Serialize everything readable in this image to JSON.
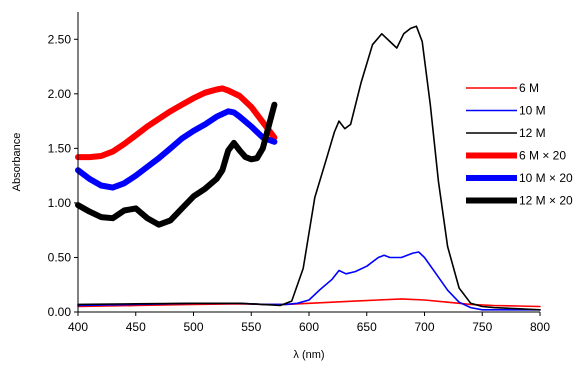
{
  "chart_data": {
    "type": "line",
    "title": "",
    "xlabel": "λ (nm)",
    "ylabel": "Absorbance",
    "xlim": [
      400,
      800
    ],
    "ylim": [
      0,
      2.75
    ],
    "xticks": [
      "400",
      "450",
      "500",
      "550",
      "600",
      "650",
      "700",
      "750",
      "800"
    ],
    "yticks": [
      "0.00",
      "0.50",
      "1.00",
      "1.50",
      "2.00",
      "2.50"
    ],
    "grid": false,
    "legend_position": "right",
    "series": [
      {
        "name": "6 M",
        "color": "#ff0000",
        "weight": "thin",
        "x": [
          400,
          450,
          500,
          540,
          560,
          580,
          600,
          620,
          640,
          660,
          680,
          700,
          720,
          740,
          760,
          780,
          800
        ],
        "y": [
          0.05,
          0.06,
          0.07,
          0.075,
          0.07,
          0.07,
          0.08,
          0.09,
          0.1,
          0.11,
          0.12,
          0.11,
          0.09,
          0.07,
          0.06,
          0.055,
          0.05
        ]
      },
      {
        "name": "10 M",
        "color": "#0000ff",
        "weight": "thin",
        "x": [
          400,
          450,
          500,
          540,
          560,
          580,
          590,
          600,
          610,
          620,
          626,
          632,
          640,
          650,
          660,
          665,
          670,
          680,
          690,
          695,
          700,
          710,
          720,
          730,
          740,
          750,
          760,
          780,
          800
        ],
        "y": [
          0.06,
          0.07,
          0.08,
          0.08,
          0.07,
          0.07,
          0.08,
          0.11,
          0.21,
          0.3,
          0.38,
          0.35,
          0.37,
          0.42,
          0.5,
          0.52,
          0.5,
          0.5,
          0.54,
          0.55,
          0.5,
          0.35,
          0.2,
          0.09,
          0.04,
          0.02,
          0.02,
          0.02,
          0.02
        ]
      },
      {
        "name": "12 M",
        "color": "#000000",
        "weight": "thin",
        "x": [
          400,
          450,
          500,
          540,
          560,
          575,
          585,
          595,
          605,
          615,
          622,
          626,
          631,
          636,
          645,
          655,
          663,
          670,
          676,
          682,
          688,
          693,
          698,
          705,
          712,
          720,
          730,
          740,
          750,
          760,
          780,
          800
        ],
        "y": [
          0.07,
          0.075,
          0.08,
          0.08,
          0.07,
          0.06,
          0.1,
          0.4,
          1.05,
          1.4,
          1.65,
          1.75,
          1.68,
          1.72,
          2.1,
          2.45,
          2.55,
          2.48,
          2.42,
          2.55,
          2.6,
          2.62,
          2.48,
          1.9,
          1.2,
          0.6,
          0.22,
          0.08,
          0.05,
          0.04,
          0.03,
          0.02
        ]
      },
      {
        "name": "6 M × 20",
        "color": "#ff0000",
        "weight": "thick",
        "x": [
          400,
          410,
          420,
          430,
          440,
          450,
          460,
          470,
          480,
          490,
          500,
          510,
          520,
          525,
          530,
          540,
          550,
          560,
          570
        ],
        "y": [
          1.42,
          1.42,
          1.43,
          1.47,
          1.54,
          1.62,
          1.7,
          1.77,
          1.84,
          1.9,
          1.96,
          2.01,
          2.04,
          2.05,
          2.03,
          1.98,
          1.88,
          1.74,
          1.6
        ]
      },
      {
        "name": "10 M × 20",
        "color": "#0000ff",
        "weight": "thick",
        "x": [
          400,
          410,
          420,
          430,
          440,
          450,
          460,
          470,
          480,
          490,
          500,
          510,
          520,
          530,
          535,
          540,
          550,
          560,
          570
        ],
        "y": [
          1.3,
          1.22,
          1.16,
          1.14,
          1.18,
          1.25,
          1.33,
          1.41,
          1.5,
          1.59,
          1.66,
          1.72,
          1.79,
          1.84,
          1.83,
          1.79,
          1.7,
          1.6,
          1.56
        ]
      },
      {
        "name": "12 M × 20",
        "color": "#000000",
        "weight": "thick",
        "x": [
          400,
          410,
          420,
          430,
          440,
          450,
          460,
          470,
          480,
          490,
          500,
          510,
          520,
          525,
          530,
          535,
          540,
          545,
          550,
          555,
          560,
          565,
          570
        ],
        "y": [
          0.98,
          0.92,
          0.87,
          0.86,
          0.93,
          0.95,
          0.86,
          0.8,
          0.84,
          0.95,
          1.06,
          1.13,
          1.22,
          1.3,
          1.48,
          1.55,
          1.48,
          1.42,
          1.4,
          1.41,
          1.5,
          1.7,
          1.9
        ]
      }
    ]
  }
}
